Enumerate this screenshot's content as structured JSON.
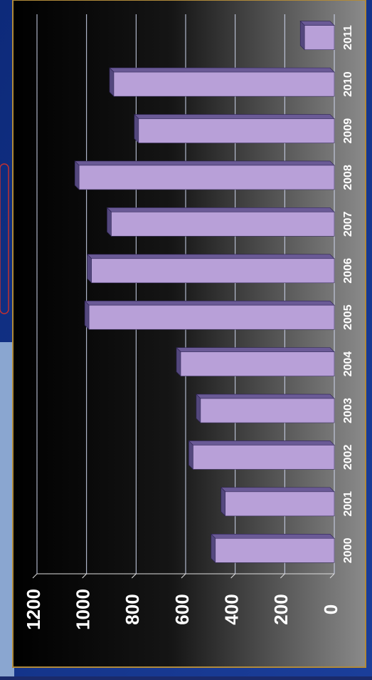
{
  "chart_data": {
    "type": "bar",
    "orientation": "rotated",
    "categories": [
      "2000",
      "2001",
      "2002",
      "2003",
      "2004",
      "2005",
      "2006",
      "2007",
      "2008",
      "2009",
      "2010",
      "2011"
    ],
    "values": [
      480,
      440,
      570,
      540,
      620,
      990,
      980,
      900,
      1030,
      790,
      890,
      120
    ],
    "color": "#b8a0d8",
    "ylim": [
      0,
      1200
    ],
    "yticks": [
      0,
      200,
      400,
      600,
      800,
      1000,
      1200
    ],
    "grid": true
  }
}
